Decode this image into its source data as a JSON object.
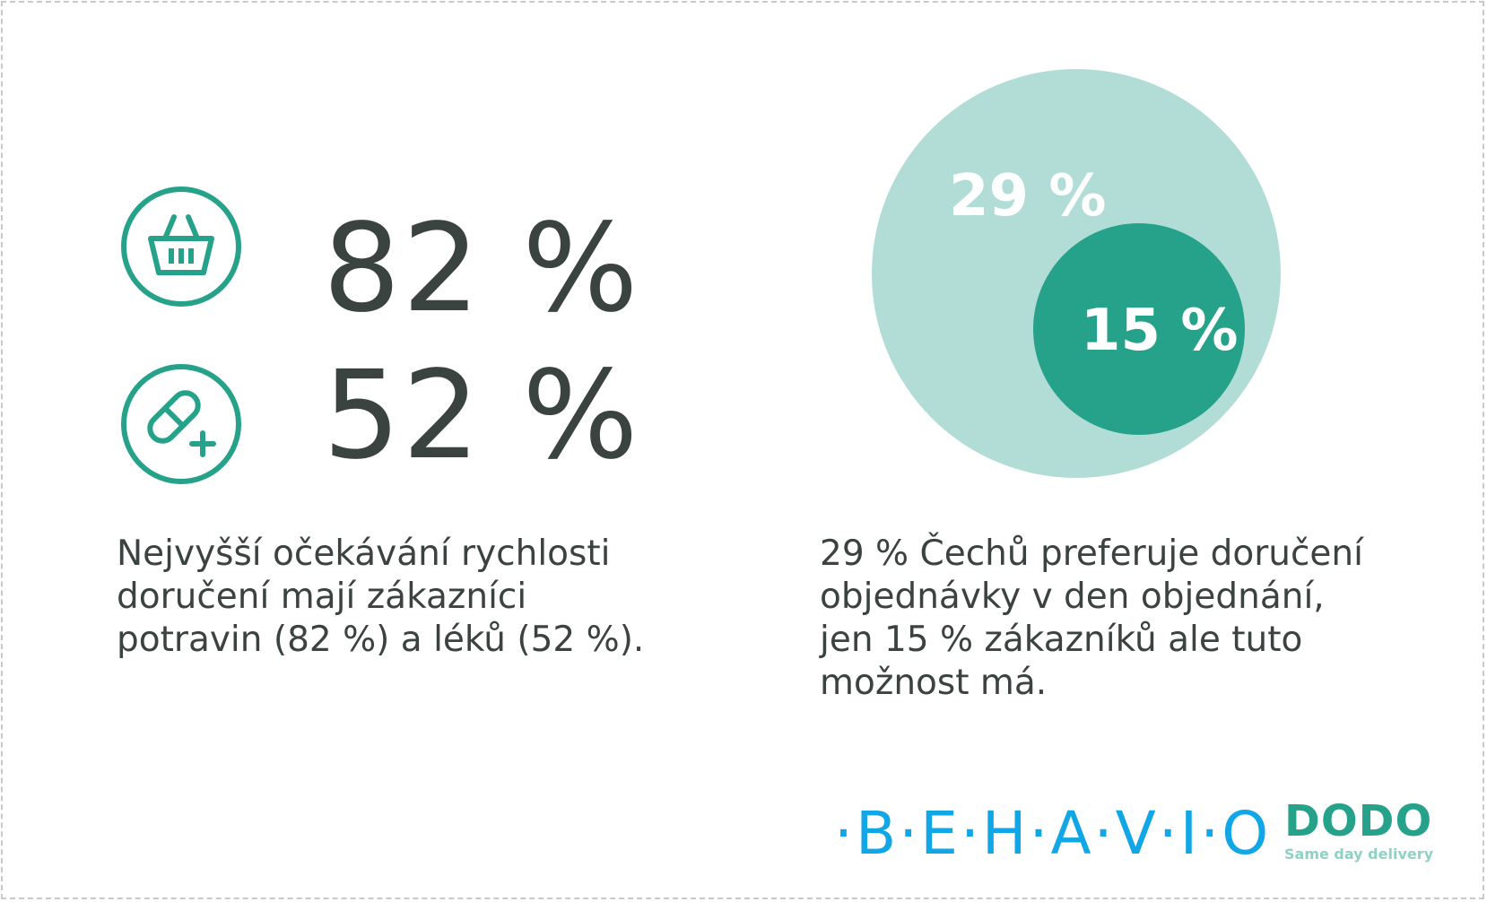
{
  "colors": {
    "accent_teal": "#27a28a",
    "light_teal": "#b2ddd7",
    "text_dark": "#3b4341",
    "behavio_blue": "#11a7e6",
    "dodo_sub": "#8fd1c3"
  },
  "stats": {
    "groceries": {
      "icon": "shopping-basket-icon",
      "value": "82 %",
      "share": 0.82
    },
    "medicines": {
      "icon": "pill-plus-icon",
      "value": "52 %",
      "share": 0.52
    }
  },
  "left_caption": {
    "lines": [
      "Nejvyšší očekávání rychlosti",
      "doručení mají zákazníci",
      "potravin (82 %) a léků (52 %)."
    ]
  },
  "venn": {
    "outer": {
      "label": "29 %",
      "share": 0.29
    },
    "inner": {
      "label": "15 %",
      "share": 0.15
    }
  },
  "right_caption": {
    "lines": [
      "29 % Čechů preferuje doručení",
      "objednávky v den objednání,",
      "jen 15 % zákazníků ale tuto",
      "možnost má."
    ]
  },
  "logos": {
    "behavio": "·B·E·H·A·V·I·O",
    "dodo": "DODO",
    "dodo_tagline": "Same day delivery"
  }
}
